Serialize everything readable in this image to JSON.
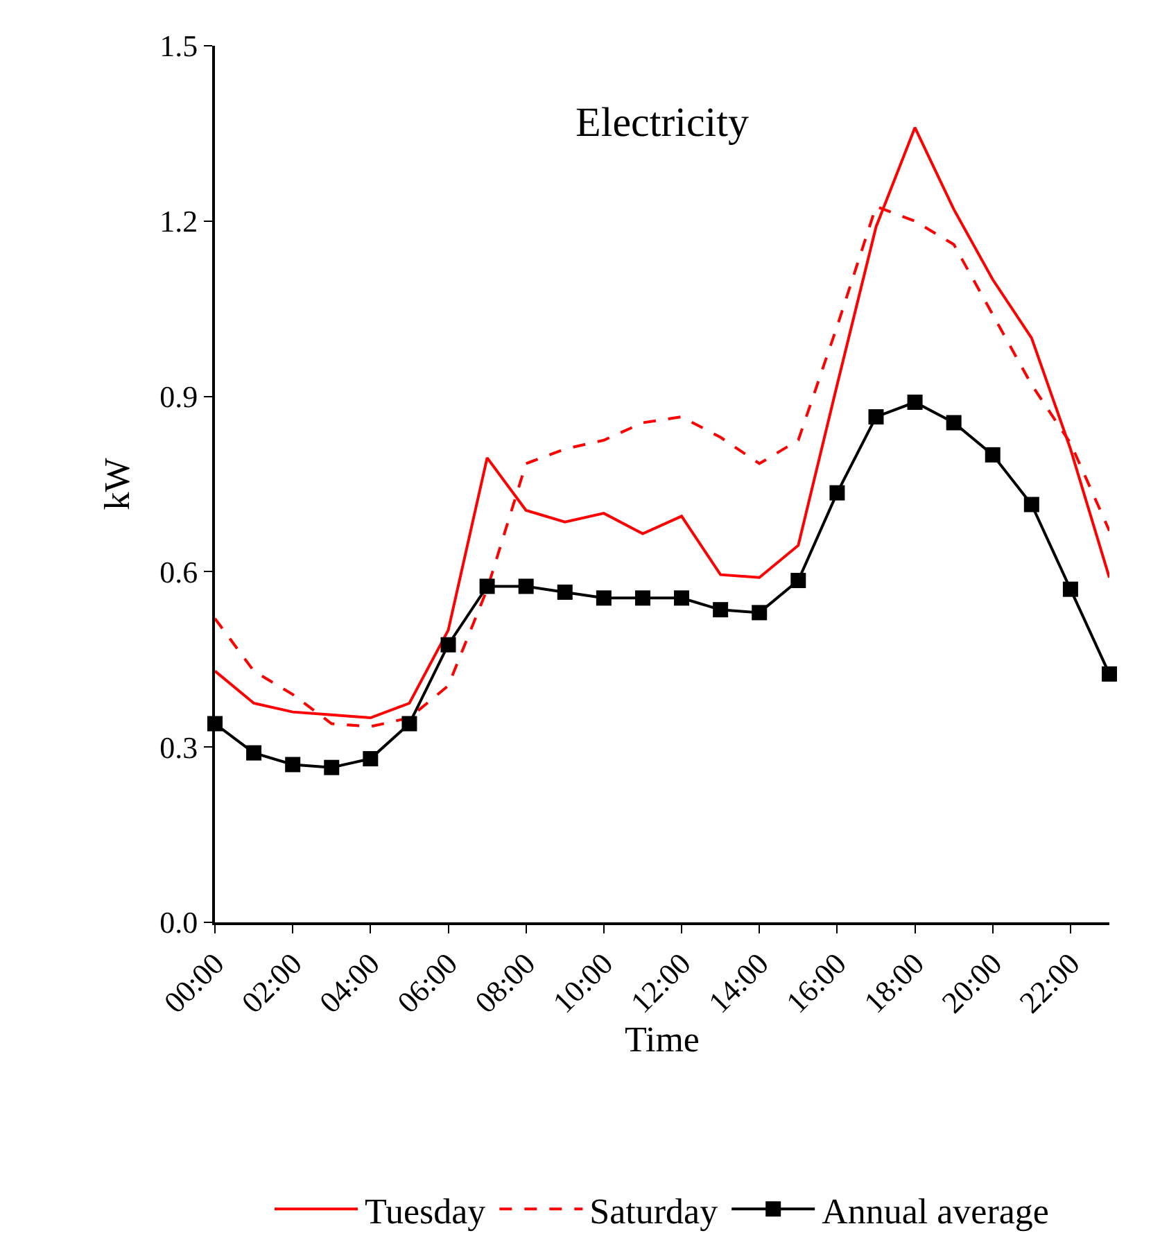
{
  "chart_data": {
    "type": "line",
    "title": "Electricity",
    "xlabel": "Time",
    "ylabel": "kW",
    "x": [
      0,
      1,
      2,
      3,
      4,
      5,
      6,
      7,
      8,
      9,
      10,
      11,
      12,
      13,
      14,
      15,
      16,
      17,
      18,
      19,
      20,
      21,
      22,
      23
    ],
    "xlim": [
      0,
      23
    ],
    "xticks": [
      {
        "value": 0,
        "label": "00:00"
      },
      {
        "value": 2,
        "label": "02:00"
      },
      {
        "value": 4,
        "label": "04:00"
      },
      {
        "value": 6,
        "label": "06:00"
      },
      {
        "value": 8,
        "label": "08:00"
      },
      {
        "value": 10,
        "label": "10:00"
      },
      {
        "value": 12,
        "label": "12:00"
      },
      {
        "value": 14,
        "label": "14:00"
      },
      {
        "value": 16,
        "label": "16:00"
      },
      {
        "value": 18,
        "label": "18:00"
      },
      {
        "value": 20,
        "label": "20:00"
      },
      {
        "value": 22,
        "label": "22:00"
      }
    ],
    "ylim": [
      0,
      1.5
    ],
    "yticks": [
      {
        "value": 0,
        "label": "0.0"
      },
      {
        "value": 0.3,
        "label": "0.3"
      },
      {
        "value": 0.6,
        "label": "0.6"
      },
      {
        "value": 0.9,
        "label": "0.9"
      },
      {
        "value": 1.2,
        "label": "1.2"
      },
      {
        "value": 1.5,
        "label": "1.5"
      }
    ],
    "legend": "bottom",
    "series": [
      {
        "name": "Tuesday",
        "color": "#ff0000",
        "line_style": "solid",
        "marker": "none",
        "values": [
          0.43,
          0.375,
          0.36,
          0.355,
          0.35,
          0.375,
          0.5,
          0.795,
          0.705,
          0.685,
          0.7,
          0.665,
          0.695,
          0.595,
          0.59,
          0.645,
          0.92,
          1.19,
          1.36,
          1.22,
          1.1,
          1.0,
          0.81,
          0.59
        ]
      },
      {
        "name": "Saturday",
        "color": "#ff0000",
        "line_style": "dashed",
        "marker": "none",
        "values": [
          0.52,
          0.43,
          0.39,
          0.34,
          0.335,
          0.35,
          0.405,
          0.57,
          0.785,
          0.81,
          0.825,
          0.855,
          0.865,
          0.83,
          0.785,
          0.825,
          1.02,
          1.225,
          1.2,
          1.16,
          1.04,
          0.92,
          0.82,
          0.67
        ]
      },
      {
        "name": "Annual average",
        "color": "#000000",
        "line_style": "solid",
        "marker": "square",
        "values": [
          0.34,
          0.29,
          0.27,
          0.265,
          0.28,
          0.34,
          0.475,
          0.575,
          0.575,
          0.565,
          0.555,
          0.555,
          0.555,
          0.535,
          0.53,
          0.585,
          0.735,
          0.865,
          0.89,
          0.855,
          0.8,
          0.715,
          0.57,
          0.425
        ]
      }
    ]
  }
}
